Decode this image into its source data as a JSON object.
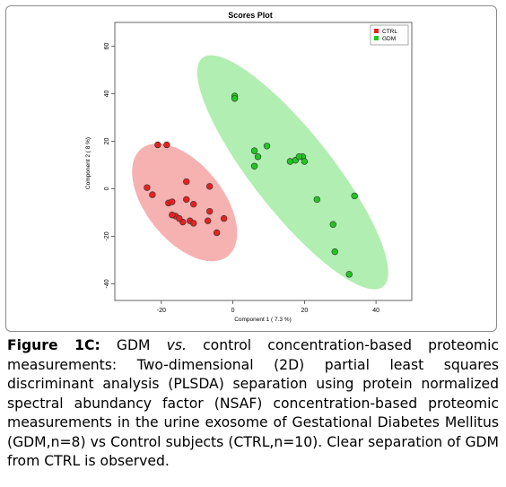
{
  "chart_data": {
    "type": "scatter",
    "title": "Scores Plot",
    "xlabel": "Component 1 ( 7.3 %)",
    "ylabel": "Component 2 ( 8 %)",
    "xlim": [
      -33,
      50
    ],
    "ylim": [
      -47,
      70
    ],
    "xticks": [
      -20,
      0,
      20,
      40
    ],
    "yticks": [
      -40,
      -20,
      0,
      20,
      40,
      60
    ],
    "xtick_labels": [
      "-20",
      "0",
      "20",
      "40"
    ],
    "ytick_labels": [
      "-40",
      "-20",
      "0",
      "20",
      "40",
      "60"
    ],
    "grid": false,
    "legend_position": "top-right",
    "series": [
      {
        "name": "CTRL",
        "color": "#e32222",
        "ellipse_fill": "#f5a8a8",
        "points": [
          [
            -21,
            18.5
          ],
          [
            -18.5,
            18.5
          ],
          [
            -24,
            0.5
          ],
          [
            -22.5,
            -2.5
          ],
          [
            -18,
            -6
          ],
          [
            -17,
            -5.5
          ],
          [
            -16,
            -11.5
          ],
          [
            -17,
            -11
          ],
          [
            -14,
            -14
          ],
          [
            -15,
            -12.5
          ],
          [
            -13,
            3
          ],
          [
            -13,
            -4.5
          ],
          [
            -11,
            -6.5
          ],
          [
            -12,
            -13.5
          ],
          [
            -11,
            -14.5
          ],
          [
            -7,
            -13.5
          ],
          [
            -6.5,
            -9.5
          ],
          [
            -6.5,
            1
          ],
          [
            -2.5,
            -12.5
          ],
          [
            -4.5,
            -18.5
          ]
        ]
      },
      {
        "name": "GDM",
        "color": "#22c522",
        "ellipse_fill": "#a8eca8",
        "points": [
          [
            0.5,
            39
          ],
          [
            0.5,
            38
          ],
          [
            6,
            16
          ],
          [
            7,
            13.5
          ],
          [
            9.5,
            18
          ],
          [
            6,
            9.5
          ],
          [
            16,
            11.5
          ],
          [
            17.5,
            12
          ],
          [
            19.5,
            13.5
          ],
          [
            18.5,
            13.5
          ],
          [
            20,
            11.5
          ],
          [
            23.5,
            -4.5
          ],
          [
            28,
            -15
          ],
          [
            34,
            -3
          ],
          [
            28.5,
            -26.5
          ],
          [
            32.5,
            -36
          ]
        ]
      }
    ]
  }
}
